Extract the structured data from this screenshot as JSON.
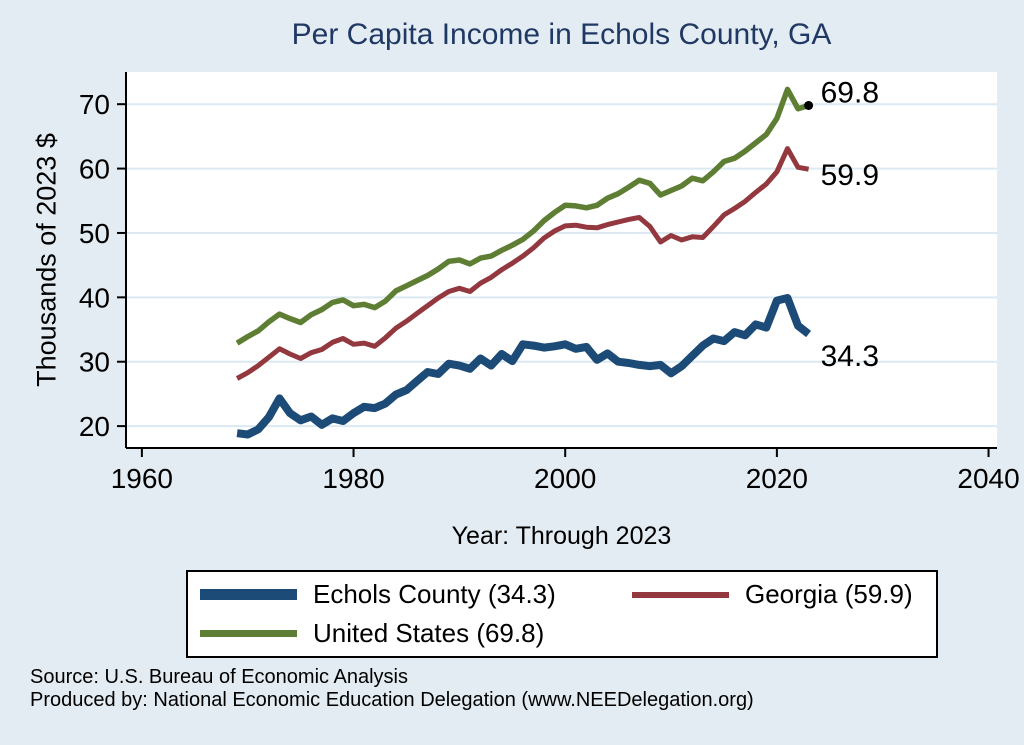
{
  "title": "Per Capita Income in Echols County, GA",
  "colors": {
    "background": "#e3ecf2",
    "title": "#1f3864",
    "plot_background": "#ffffff",
    "gridline": "#dce9f2",
    "axis": "#000000",
    "echols_county": "#1d4b77",
    "georgia": "#92383e",
    "united_states": "#5e7e33"
  },
  "legend": {
    "items": [
      {
        "label": "Echols County (34.3)",
        "color": "#1d4b77",
        "swatch_height": 11
      },
      {
        "label": "Georgia (59.9)",
        "color": "#92383e",
        "swatch_height": 6
      },
      {
        "label": "United States (69.8)",
        "color": "#5e7e33",
        "swatch_height": 7
      }
    ]
  },
  "footer": {
    "source": "Source: U.S. Bureau of Economic Analysis",
    "produced_by": "Produced by: National Economic Education Delegation (www.NEEDelegation.org)"
  },
  "chart_data": {
    "type": "line",
    "title": "Per Capita Income in Echols County, GA",
    "xlabel": "Year: Through 2023",
    "ylabel": "Thousands of 2023 $",
    "grid": "horizontal",
    "legend_position": "bottom",
    "xlim": [
      1958.5,
      2040.8
    ],
    "ylim": [
      16.6,
      75.0
    ],
    "xticks": [
      1960,
      1980,
      2000,
      2020,
      2040
    ],
    "yticks": [
      20,
      30,
      40,
      50,
      60,
      70
    ],
    "x": [
      1969,
      1970,
      1971,
      1972,
      1973,
      1974,
      1975,
      1976,
      1977,
      1978,
      1979,
      1980,
      1981,
      1982,
      1983,
      1984,
      1985,
      1986,
      1987,
      1988,
      1989,
      1990,
      1991,
      1992,
      1993,
      1994,
      1995,
      1996,
      1997,
      1998,
      1999,
      2000,
      2001,
      2002,
      2003,
      2004,
      2005,
      2006,
      2007,
      2008,
      2009,
      2010,
      2011,
      2012,
      2013,
      2014,
      2015,
      2016,
      2017,
      2018,
      2019,
      2020,
      2021,
      2022,
      2023
    ],
    "series": [
      {
        "name": "Echols County",
        "id": "echols-county",
        "color": "#1d4b77",
        "stroke_width": 8,
        "end_label": "34.3",
        "end_marker": false,
        "values": [
          18.9,
          18.7,
          19.5,
          21.4,
          24.3,
          22.0,
          20.9,
          21.5,
          20.2,
          21.2,
          20.8,
          22.0,
          23.0,
          22.8,
          23.5,
          24.9,
          25.6,
          27.0,
          28.4,
          28.1,
          29.7,
          29.4,
          28.9,
          30.5,
          29.4,
          31.2,
          30.1,
          32.7,
          32.5,
          32.2,
          32.4,
          32.7,
          32.0,
          32.3,
          30.3,
          31.3,
          30.0,
          29.8,
          29.5,
          29.3,
          29.5,
          28.2,
          29.3,
          30.9,
          32.5,
          33.6,
          33.2,
          34.6,
          34.1,
          35.8,
          35.3,
          39.5,
          39.9,
          35.6,
          34.3
        ]
      },
      {
        "name": "Georgia",
        "id": "georgia",
        "color": "#92383e",
        "stroke_width": 5,
        "end_label": "59.9",
        "end_marker": false,
        "values": [
          27.4,
          28.3,
          29.4,
          30.7,
          32.0,
          31.2,
          30.5,
          31.4,
          31.9,
          33.0,
          33.6,
          32.7,
          32.9,
          32.4,
          33.7,
          35.2,
          36.3,
          37.5,
          38.7,
          39.9,
          40.9,
          41.4,
          40.9,
          42.2,
          43.1,
          44.3,
          45.3,
          46.4,
          47.7,
          49.2,
          50.3,
          51.1,
          51.2,
          50.9,
          50.8,
          51.3,
          51.7,
          52.1,
          52.4,
          51.0,
          48.6,
          49.6,
          48.9,
          49.4,
          49.3,
          51.0,
          52.8,
          53.8,
          54.9,
          56.3,
          57.6,
          59.5,
          63.1,
          60.2,
          59.9
        ]
      },
      {
        "name": "United States",
        "id": "united-states",
        "color": "#5e7e33",
        "stroke_width": 5.5,
        "end_label": "69.8",
        "end_marker": true,
        "values": [
          32.9,
          33.9,
          34.8,
          36.2,
          37.4,
          36.7,
          36.1,
          37.3,
          38.1,
          39.2,
          39.6,
          38.7,
          38.9,
          38.4,
          39.4,
          41.0,
          41.8,
          42.6,
          43.4,
          44.4,
          45.6,
          45.8,
          45.2,
          46.1,
          46.4,
          47.3,
          48.1,
          49.0,
          50.3,
          51.9,
          53.2,
          54.3,
          54.2,
          53.9,
          54.3,
          55.4,
          56.1,
          57.1,
          58.2,
          57.7,
          55.9,
          56.6,
          57.3,
          58.5,
          58.1,
          59.5,
          61.1,
          61.6,
          62.7,
          64.0,
          65.3,
          67.8,
          72.3,
          69.3,
          69.8
        ]
      }
    ]
  }
}
